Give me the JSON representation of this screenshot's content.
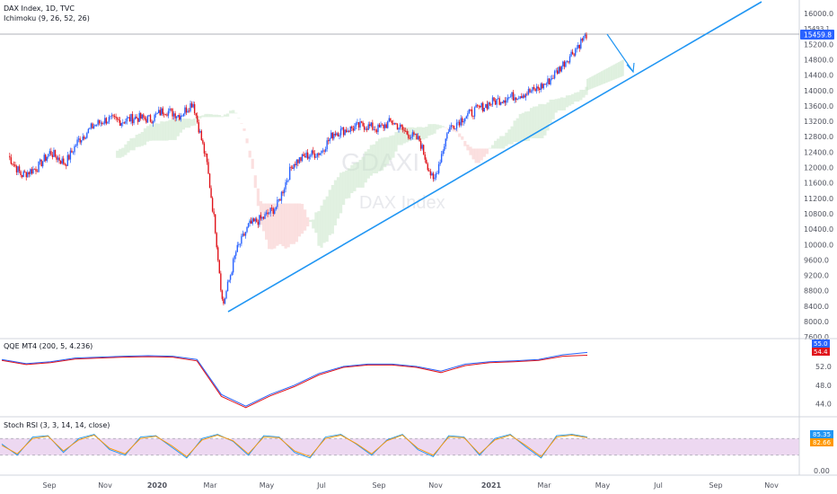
{
  "colors": {
    "up": "#2962ff",
    "down": "#e0151c",
    "cloud_bull": "#c8e6c9",
    "cloud_bear": "#f7c6c7",
    "trendline": "#2196f3",
    "qqe_fast": "#2962ff",
    "qqe_slow": "#e0151c",
    "stoch_k": "#2196f3",
    "stoch_d": "#ff9800",
    "stoch_band": "#e1bee7"
  },
  "header": {
    "symbol": "DAX Index, 1D, TVC",
    "indicator": "Ichimoku (9, 26, 52, 26)"
  },
  "watermark": {
    "ticker": "GDAXI",
    "name": "DAX Index"
  },
  "price_badges": {
    "current": "15459.8",
    "upper": "15493.1"
  },
  "qqe": {
    "title": "QQE MT4 (200, 5, 4.236)",
    "badge_fast": "55.0",
    "badge_slow": "54.4"
  },
  "stoch": {
    "title": "Stoch RSI (3, 3, 14, 14, close)",
    "badge_k": "85.35",
    "badge_d": "82.66"
  },
  "chart_data": [
    {
      "type": "line",
      "title": "DAX Index, 1D, TVC",
      "y_ticks": [
        "16000.0",
        "15600.0",
        "15200.0",
        "14800.0",
        "14400.0",
        "14000.0",
        "13600.0",
        "13200.0",
        "12800.0",
        "12400.0",
        "12000.0",
        "11600.0",
        "11200.0",
        "10800.0",
        "10400.0",
        "10000.0",
        "9600.0",
        "9200.0",
        "8800.0",
        "8400.0",
        "8000.0",
        "7600.0"
      ],
      "ylim": [
        7600,
        16000
      ],
      "x_labels": [
        "Sep",
        "Nov",
        "2020",
        "Mar",
        "May",
        "Jul",
        "Sep",
        "Nov",
        "2021",
        "Mar",
        "May",
        "Jul",
        "Sep",
        "Nov"
      ],
      "x": [
        "2019-08-01",
        "2019-08-15",
        "2019-09-01",
        "2019-09-15",
        "2019-10-01",
        "2019-10-15",
        "2019-11-01",
        "2019-11-15",
        "2019-12-01",
        "2019-12-15",
        "2020-01-01",
        "2020-01-15",
        "2020-02-01",
        "2020-02-15",
        "2020-03-01",
        "2020-03-10",
        "2020-03-18",
        "2020-04-01",
        "2020-04-15",
        "2020-05-01",
        "2020-05-15",
        "2020-06-01",
        "2020-06-15",
        "2020-07-01",
        "2020-07-15",
        "2020-08-01",
        "2020-08-15",
        "2020-09-01",
        "2020-09-15",
        "2020-10-01",
        "2020-10-15",
        "2020-10-30",
        "2020-11-15",
        "2020-12-01",
        "2020-12-15",
        "2021-01-01",
        "2021-01-15",
        "2021-02-01",
        "2021-02-15",
        "2021-03-01",
        "2021-03-15",
        "2021-04-01",
        "2021-04-12"
      ],
      "series": [
        {
          "name": "",
          "values": [
            12300,
            11800,
            12000,
            12400,
            12100,
            12700,
            13100,
            13250,
            13200,
            13300,
            13250,
            13500,
            13350,
            13700,
            12100,
            10400,
            8400,
            9800,
            10500,
            10700,
            11000,
            12100,
            12300,
            12400,
            12900,
            13000,
            13100,
            13000,
            13200,
            12900,
            12700,
            11600,
            13000,
            13300,
            13500,
            13700,
            13800,
            13900,
            14000,
            14200,
            14600,
            15100,
            15459.8
          ]
        }
      ],
      "annotations": [
        "Rising trendline from the March 2020 low",
        "Projected pullback arrow toward the trendline"
      ]
    },
    {
      "type": "line",
      "title": "QQE MT4 (200, 5, 4.236)",
      "y_ticks": [
        "52.0",
        "48.0",
        "44.0"
      ],
      "series": [
        {
          "name": "",
          "values": [
            53.5,
            52.6,
            53.0,
            53.8,
            54.0,
            54.2,
            54.3,
            54.2,
            53.5,
            46.0,
            43.5,
            46.0,
            48.0,
            50.5,
            52.0,
            52.5,
            52.5,
            52.0,
            51.0,
            52.5,
            53.0,
            53.2,
            53.5,
            54.5,
            55.0
          ]
        },
        {
          "name": "",
          "values": [
            53.3,
            52.4,
            52.8,
            53.6,
            53.8,
            54.0,
            54.1,
            54.0,
            53.2,
            45.6,
            43.2,
            45.7,
            47.7,
            50.2,
            51.8,
            52.3,
            52.3,
            51.8,
            50.7,
            52.2,
            52.8,
            53.0,
            53.3,
            54.2,
            54.4
          ]
        }
      ]
    },
    {
      "type": "line",
      "title": "Stoch RSI (3, 3, 14, 14, close)",
      "y_ticks": [
        "0.00"
      ],
      "band": [
        20,
        80
      ],
      "series": [
        {
          "name": "",
          "values": [
            60,
            20,
            85,
            90,
            30,
            80,
            95,
            40,
            20,
            85,
            90,
            50,
            10,
            80,
            95,
            70,
            20,
            90,
            85,
            30,
            10,
            85,
            95,
            60,
            20,
            75,
            95,
            40,
            15,
            90,
            85,
            20,
            80,
            95,
            50,
            10,
            90,
            95,
            85
          ]
        },
        {
          "name": "",
          "values": [
            55,
            25,
            80,
            88,
            35,
            75,
            92,
            45,
            25,
            80,
            88,
            55,
            15,
            75,
            92,
            72,
            25,
            85,
            83,
            35,
            15,
            80,
            92,
            62,
            25,
            72,
            92,
            45,
            20,
            85,
            83,
            25,
            75,
            92,
            55,
            15,
            85,
            92,
            83
          ]
        }
      ]
    }
  ]
}
